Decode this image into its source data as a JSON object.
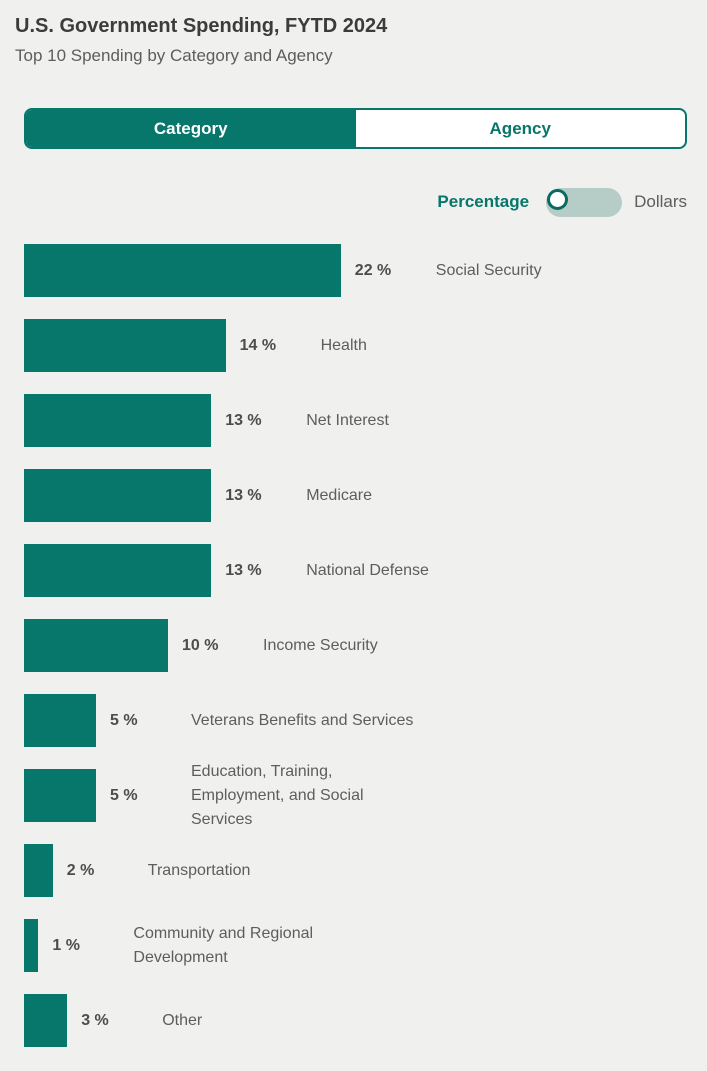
{
  "header": {
    "title": "U.S. Government Spending, FYTD 2024",
    "subtitle": "Top 10 Spending by Category and Agency"
  },
  "tabs": [
    {
      "label": "Category",
      "active": true
    },
    {
      "label": "Agency",
      "active": false
    }
  ],
  "unit_toggle": {
    "left_label": "Percentage",
    "right_label": "Dollars",
    "selected": "Percentage"
  },
  "colors": {
    "accent_teal": "#07766b",
    "toggle_track": "#b5cdc6",
    "background": "#f0f0ee"
  },
  "chart_data": {
    "type": "bar",
    "orientation": "horizontal",
    "unit": "percent",
    "title": "U.S. Government Spending, FYTD 2024",
    "subtitle": "Top 10 Spending by Category and Agency",
    "categories": [
      "Social Security",
      "Health",
      "Net Interest",
      "Medicare",
      "National Defense",
      "Income Security",
      "Veterans Benefits and Services",
      "Education, Training, Employment, and Social Services",
      "Transportation",
      "Community and Regional Development",
      "Other"
    ],
    "values": [
      22,
      14,
      13,
      13,
      13,
      10,
      5,
      5,
      2,
      1,
      3
    ],
    "value_labels": [
      "22 %",
      "14 %",
      "13 %",
      "13 %",
      "13 %",
      "10 %",
      "5 %",
      "5 %",
      "2 %",
      "1 %",
      "3 %"
    ],
    "bar_color": "#07766b",
    "xlim": [
      0,
      46
    ],
    "grid": false,
    "legend": false
  }
}
